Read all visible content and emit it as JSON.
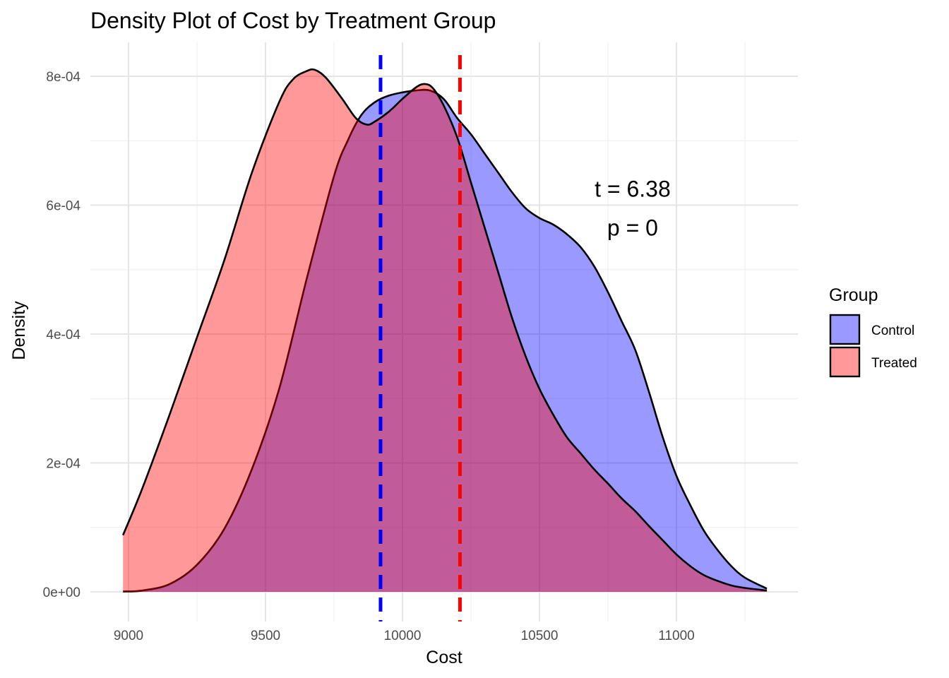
{
  "chart_data": {
    "type": "area",
    "title": "Density Plot of Cost by Treatment Group",
    "xlabel": "Cost",
    "ylabel": "Density",
    "xlim": [
      8980,
      11330
    ],
    "ylim": [
      0,
      0.00081
    ],
    "x_ticks": [
      {
        "value": 9000,
        "label": "9000"
      },
      {
        "value": 9500,
        "label": "9500"
      },
      {
        "value": 10000,
        "label": "10000"
      },
      {
        "value": 10500,
        "label": "10500"
      },
      {
        "value": 11000,
        "label": "11000"
      }
    ],
    "y_ticks": [
      {
        "value": 0,
        "label": "0e+00"
      },
      {
        "value": 0.0002,
        "label": "2e-04"
      },
      {
        "value": 0.0004,
        "label": "4e-04"
      },
      {
        "value": 0.0006,
        "label": "6e-04"
      },
      {
        "value": 0.0008,
        "label": "8e-04"
      }
    ],
    "grid": true,
    "legend": {
      "title": "Group",
      "position": "right"
    },
    "series": [
      {
        "name": "Control",
        "color": "#0000FF",
        "fill_opacity": 0.4,
        "x": [
          8980,
          9050,
          9150,
          9250,
          9350,
          9450,
          9550,
          9650,
          9750,
          9800,
          9850,
          9900,
          9950,
          10000,
          10050,
          10100,
          10150,
          10200,
          10250,
          10300,
          10350,
          10400,
          10450,
          10500,
          10550,
          10600,
          10650,
          10700,
          10750,
          10800,
          10850,
          10900,
          10950,
          11000,
          11050,
          11100,
          11150,
          11200,
          11250,
          11330
        ],
        "y": [
          5e-07,
          2e-06,
          1.2e-05,
          4.2e-05,
          9.8e-05,
          0.00019,
          0.000315,
          0.000485,
          0.000645,
          0.0007,
          0.00074,
          0.00076,
          0.00077,
          0.000775,
          0.000778,
          0.000778,
          0.000765,
          0.000735,
          0.00071,
          0.00068,
          0.00065,
          0.00062,
          0.000595,
          0.00058,
          0.00057,
          0.000555,
          0.000535,
          0.000505,
          0.000465,
          0.00042,
          0.000375,
          0.00031,
          0.00024,
          0.00018,
          0.000135,
          9.5e-05,
          6.5e-05,
          4e-05,
          2.2e-05,
          5e-06
        ]
      },
      {
        "name": "Treated",
        "color": "#FF0000",
        "fill_opacity": 0.4,
        "x": [
          8980,
          9050,
          9150,
          9250,
          9350,
          9450,
          9550,
          9600,
          9650,
          9680,
          9720,
          9780,
          9830,
          9870,
          9900,
          9950,
          10000,
          10050,
          10080,
          10110,
          10150,
          10200,
          10250,
          10300,
          10350,
          10400,
          10450,
          10500,
          10550,
          10600,
          10650,
          10700,
          10750,
          10800,
          10850,
          10900,
          10950,
          11000,
          11050,
          11100,
          11150,
          11200,
          11250,
          11330
        ],
        "y": [
          8.8e-05,
          0.00016,
          0.000275,
          0.000395,
          0.000515,
          0.00065,
          0.00076,
          0.000795,
          0.000808,
          0.00081,
          0.000798,
          0.000765,
          0.000735,
          0.000725,
          0.00073,
          0.000745,
          0.000765,
          0.000783,
          0.000788,
          0.000782,
          0.000755,
          0.000705,
          0.000635,
          0.000565,
          0.000495,
          0.000425,
          0.000365,
          0.000315,
          0.000275,
          0.00024,
          0.000215,
          0.00019,
          0.000168,
          0.000145,
          0.000125,
          0.000102,
          8e-05,
          5.8e-05,
          4e-05,
          2.6e-05,
          1.7e-05,
          1e-05,
          6e-06,
          2e-06
        ]
      }
    ],
    "vlines": [
      {
        "group": "Control",
        "x": 9920,
        "color": "#0000FF",
        "style": "dashed"
      },
      {
        "group": "Treated",
        "x": 10210,
        "color": "#FF0000",
        "style": "dashed"
      }
    ],
    "annotations": [
      {
        "text": "t = 6.38",
        "x": 10840,
        "y": 0.000625
      },
      {
        "text": "p = 0",
        "x": 10840,
        "y": 0.000565
      }
    ]
  }
}
